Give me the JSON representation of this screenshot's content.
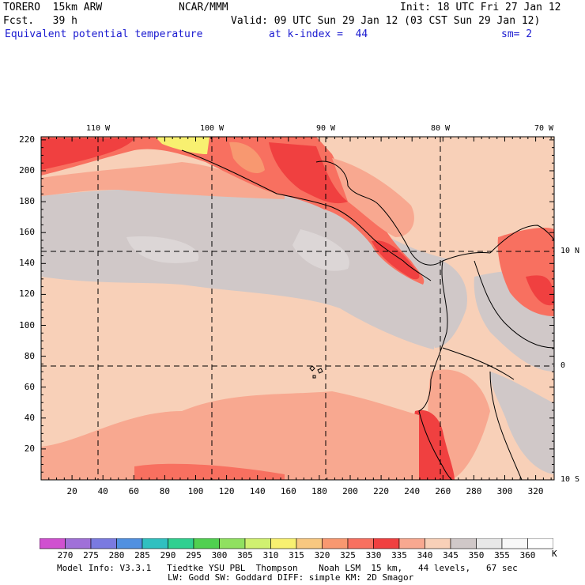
{
  "header": {
    "model": "TORERO  15km ARW",
    "center": "NCAR/MMM",
    "init": "Init: 18 UTC Fri 27 Jan 12",
    "fcst": "Fcst.   39 h",
    "valid": "Valid: 09 UTC Sun 29 Jan 12 (03 CST Sun 29 Jan 12)",
    "field": "Equivalent potential temperature",
    "level": "at k-index =  44",
    "smooth": "sm= 2"
  },
  "axes": {
    "y_ticks": [
      "220",
      "200",
      "180",
      "160",
      "140",
      "120",
      "100",
      "80",
      "60",
      "40",
      "20"
    ],
    "x_ticks": [
      "20",
      "40",
      "60",
      "80",
      "100",
      "120",
      "140",
      "160",
      "180",
      "200",
      "220",
      "240",
      "260",
      "280",
      "300",
      "320"
    ],
    "lon_labels": [
      "110 W",
      "100 W",
      "90 W",
      "80 W",
      "70 W"
    ],
    "lat_labels": [
      "10 N",
      "0",
      "10 S"
    ]
  },
  "colorbar": {
    "labels": [
      "270",
      "275",
      "280",
      "285",
      "290",
      "295",
      "300",
      "305",
      "310",
      "315",
      "320",
      "325",
      "330",
      "335",
      "340",
      "345",
      "350",
      "355",
      "360"
    ],
    "unit": "K",
    "colors": [
      "#d050d0",
      "#a070d8",
      "#7a7ae0",
      "#5090e0",
      "#30c0c0",
      "#30d090",
      "#50d050",
      "#90e060",
      "#d0f070",
      "#f8f070",
      "#f8c880",
      "#f89870",
      "#f87060",
      "#f04040",
      "#f8a890",
      "#f8d0b8",
      "#d0c8c8",
      "#e8e8e8",
      "#f8f8f8",
      "#ffffff"
    ]
  },
  "footer": {
    "line1": "Model Info: V3.3.1   Tiedtke YSU PBL  Thompson    Noah LSM  15 km,   44 levels,   67 sec",
    "line2": "LW: Godd SW: Goddard DIFF: simple KM: 2D Smagor"
  }
}
